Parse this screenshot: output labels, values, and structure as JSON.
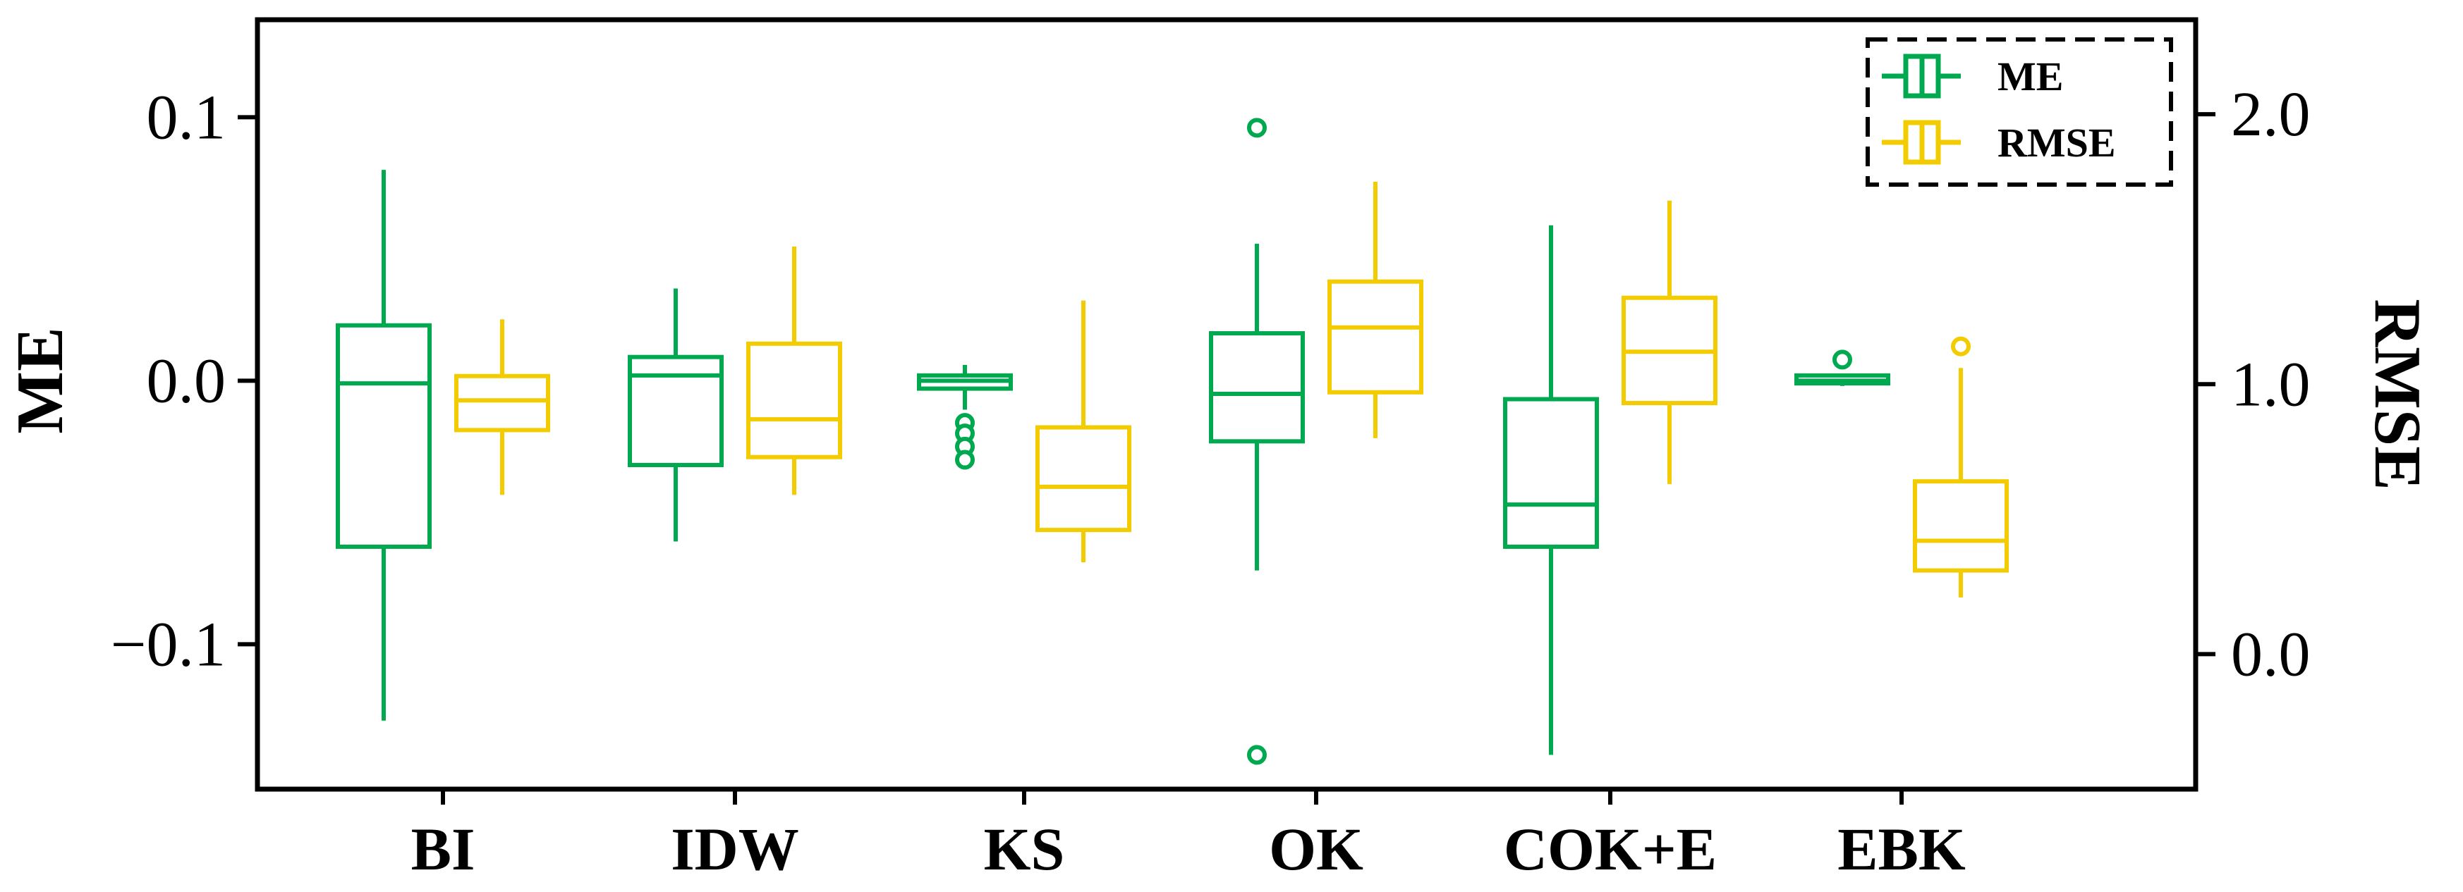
{
  "chart_data": {
    "type": "boxplot",
    "categories": [
      "BI",
      "IDW",
      "KS",
      "OK",
      "COK+E",
      "EBK"
    ],
    "left_axis": {
      "label": "ME",
      "range": [
        -0.155,
        0.137
      ],
      "ticks": [
        0.1,
        0.0,
        -0.1
      ],
      "tick_labels": [
        "0.1",
        "0.0",
        "−0.1"
      ]
    },
    "right_axis": {
      "label": "RMSE",
      "range": [
        -0.5,
        2.35
      ],
      "ticks": [
        2.0,
        1.0,
        0.0
      ],
      "tick_labels": [
        "2.0",
        "1.0",
        "0.0"
      ]
    },
    "legend": {
      "position": "top-right",
      "entries": [
        {
          "name": "ME",
          "color": "#00A94F"
        },
        {
          "name": "RMSE",
          "color": "#F2CC00"
        }
      ]
    },
    "series": [
      {
        "name": "ME",
        "axis": "left",
        "color": "#00A94F",
        "boxes": [
          {
            "category": "BI",
            "whisker_low": -0.129,
            "q1": -0.063,
            "median": -0.001,
            "q3": 0.021,
            "whisker_high": 0.08,
            "outliers": []
          },
          {
            "category": "IDW",
            "whisker_low": -0.061,
            "q1": -0.032,
            "median": 0.002,
            "q3": 0.009,
            "whisker_high": 0.035,
            "outliers": []
          },
          {
            "category": "KS",
            "whisker_low": -0.011,
            "q1": -0.003,
            "median": 0.0,
            "q3": 0.002,
            "whisker_high": 0.006,
            "outliers": [
              -0.016,
              -0.02,
              -0.025,
              -0.03
            ]
          },
          {
            "category": "OK",
            "whisker_low": -0.072,
            "q1": -0.023,
            "median": -0.005,
            "q3": 0.018,
            "whisker_high": 0.052,
            "outliers": [
              0.096,
              -0.142
            ]
          },
          {
            "category": "COK+E",
            "whisker_low": -0.142,
            "q1": -0.063,
            "median": -0.047,
            "q3": -0.007,
            "whisker_high": 0.059,
            "outliers": []
          },
          {
            "category": "EBK",
            "whisker_low": -0.002,
            "q1": -0.001,
            "median": 0.0,
            "q3": 0.002,
            "whisker_high": 0.002,
            "outliers": [
              0.008
            ]
          }
        ]
      },
      {
        "name": "RMSE",
        "axis": "right",
        "color": "#F2CC00",
        "boxes": [
          {
            "category": "BI",
            "whisker_low": 0.59,
            "q1": 0.83,
            "median": 0.94,
            "q3": 1.03,
            "whisker_high": 1.24,
            "outliers": []
          },
          {
            "category": "IDW",
            "whisker_low": 0.59,
            "q1": 0.73,
            "median": 0.87,
            "q3": 1.15,
            "whisker_high": 1.51,
            "outliers": []
          },
          {
            "category": "KS",
            "whisker_low": 0.34,
            "q1": 0.46,
            "median": 0.62,
            "q3": 0.84,
            "whisker_high": 1.31,
            "outliers": []
          },
          {
            "category": "OK",
            "whisker_low": 0.8,
            "q1": 0.97,
            "median": 1.21,
            "q3": 1.38,
            "whisker_high": 1.75,
            "outliers": []
          },
          {
            "category": "COK+E",
            "whisker_low": 0.63,
            "q1": 0.93,
            "median": 1.12,
            "q3": 1.32,
            "whisker_high": 1.68,
            "outliers": []
          },
          {
            "category": "EBK",
            "whisker_low": 0.21,
            "q1": 0.31,
            "median": 0.42,
            "q3": 0.64,
            "whisker_high": 1.06,
            "outliers": [
              1.14
            ]
          }
        ]
      }
    ]
  }
}
